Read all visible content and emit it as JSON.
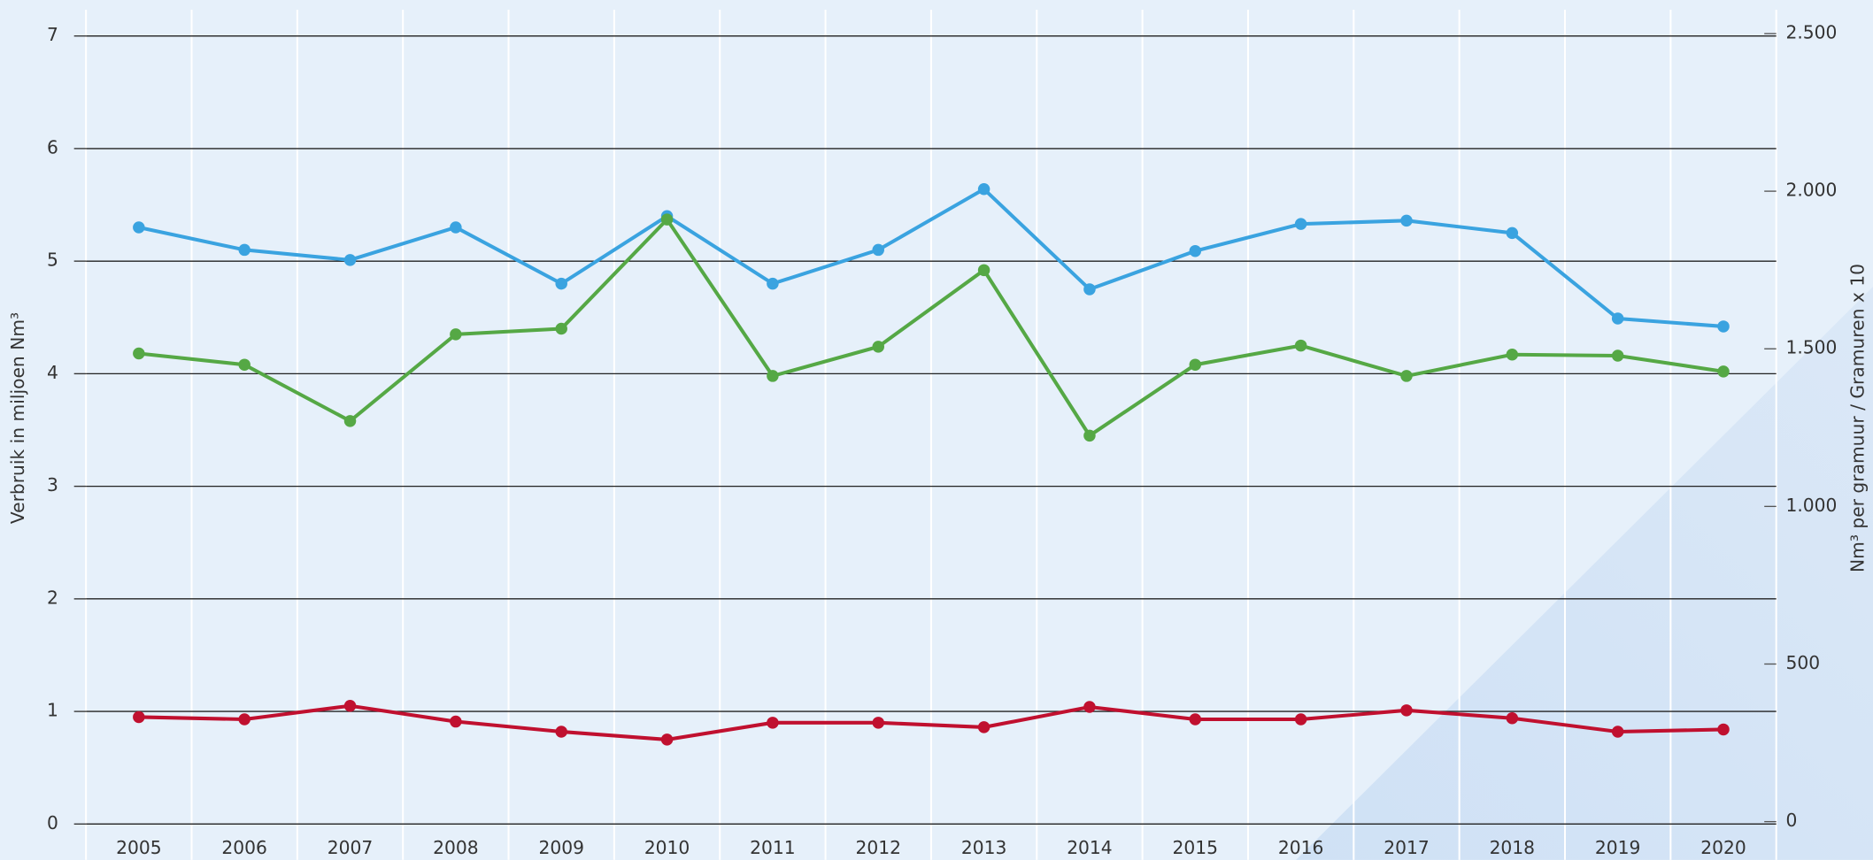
{
  "chart_data": {
    "type": "line",
    "y_label": "Verbruik in miljoen Nm³",
    "y2_label": "Nm³ per gramuur / Gramuren x 10",
    "categories": [
      "2005",
      "2006",
      "2007",
      "2008",
      "2009",
      "2010",
      "2011",
      "2012",
      "2013",
      "2014",
      "2015",
      "2016",
      "2017",
      "2018",
      "2019",
      "2020"
    ],
    "series": [
      {
        "color": "#3aa3e0",
        "values": [
          5.3,
          5.1,
          5.01,
          5.3,
          4.8,
          5.4,
          4.8,
          5.1,
          5.64,
          4.75,
          5.09,
          5.33,
          5.36,
          5.25,
          4.49,
          4.42
        ]
      },
      {
        "color": "#55a845",
        "values": [
          4.18,
          4.08,
          3.58,
          4.35,
          4.4,
          5.37,
          3.98,
          4.24,
          4.92,
          3.45,
          4.08,
          4.25,
          3.98,
          4.17,
          4.16,
          4.02
        ]
      },
      {
        "color": "#c0102f",
        "values": [
          0.95,
          0.93,
          1.05,
          0.91,
          0.82,
          0.75,
          0.9,
          0.9,
          0.86,
          1.04,
          0.93,
          0.93,
          1.01,
          0.94,
          0.82,
          0.84
        ]
      }
    ],
    "ylim": [
      0,
      7
    ],
    "yticks": [
      0,
      1,
      2,
      3,
      4,
      5,
      6,
      7
    ],
    "y2lim": [
      0,
      2500
    ],
    "y2ticks": [
      0,
      500,
      {
        "value": 1000,
        "label": "1.000"
      },
      {
        "value": 1500,
        "label": "1.500"
      },
      {
        "value": 2000,
        "label": "2.000"
      },
      {
        "value": 2500,
        "label": "2.500"
      }
    ],
    "grid": true
  }
}
